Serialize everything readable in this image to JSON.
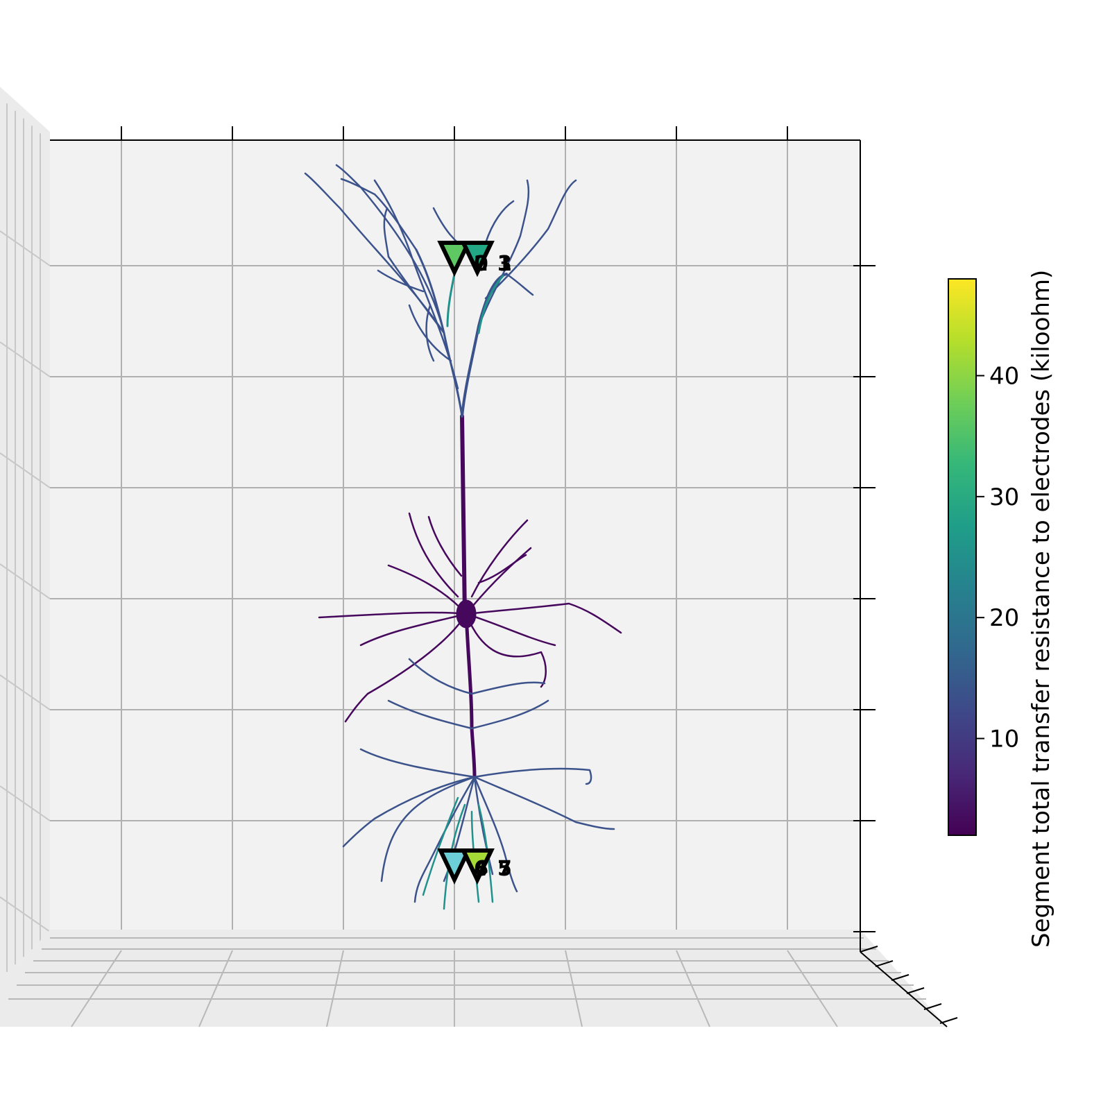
{
  "chart_data": {
    "type": "scatter",
    "title": "",
    "projection": "3d",
    "view": "front",
    "grid": true,
    "axes_background": "#f2f2f2",
    "grid_color": "#b0b0b0",
    "colormap": "viridis",
    "colorbar": {
      "label": "Segment total transfer resistance to electrodes (kiloohm)",
      "range": [
        2,
        48
      ],
      "ticks": [
        10,
        20,
        30,
        40
      ],
      "tick_labels": [
        "10",
        "20",
        "30",
        "40"
      ],
      "colors": [
        "#440154",
        "#482878",
        "#3e4989",
        "#31688e",
        "#26828e",
        "#1f9e89",
        "#35b779",
        "#6ece58",
        "#b5de2b",
        "#fde725"
      ]
    },
    "electrodes": [
      {
        "label": "0",
        "group": "top",
        "value": 36,
        "color": "#5ec962"
      },
      {
        "label": "1",
        "group": "top",
        "value": 32,
        "color": "#3fbc73"
      },
      {
        "label": "2",
        "group": "top",
        "value": 30,
        "color": "#2fb47c"
      },
      {
        "label": "3",
        "group": "top",
        "value": 28,
        "color": "#22a884"
      },
      {
        "label": "4",
        "group": "bottom",
        "value": 32,
        "color": "#6ccfd8"
      },
      {
        "label": "5",
        "group": "bottom",
        "value": 34,
        "color": "#5fd0c8"
      },
      {
        "label": "6",
        "group": "bottom",
        "value": 38,
        "color": "#7ad151"
      },
      {
        "label": "7",
        "group": "bottom",
        "value": 42,
        "color": "#a5db36"
      }
    ],
    "neuron_color_main": "#46085c",
    "neuron_color_branch": "#3b528b",
    "neuron_color_near_electrode": "#21918c"
  }
}
